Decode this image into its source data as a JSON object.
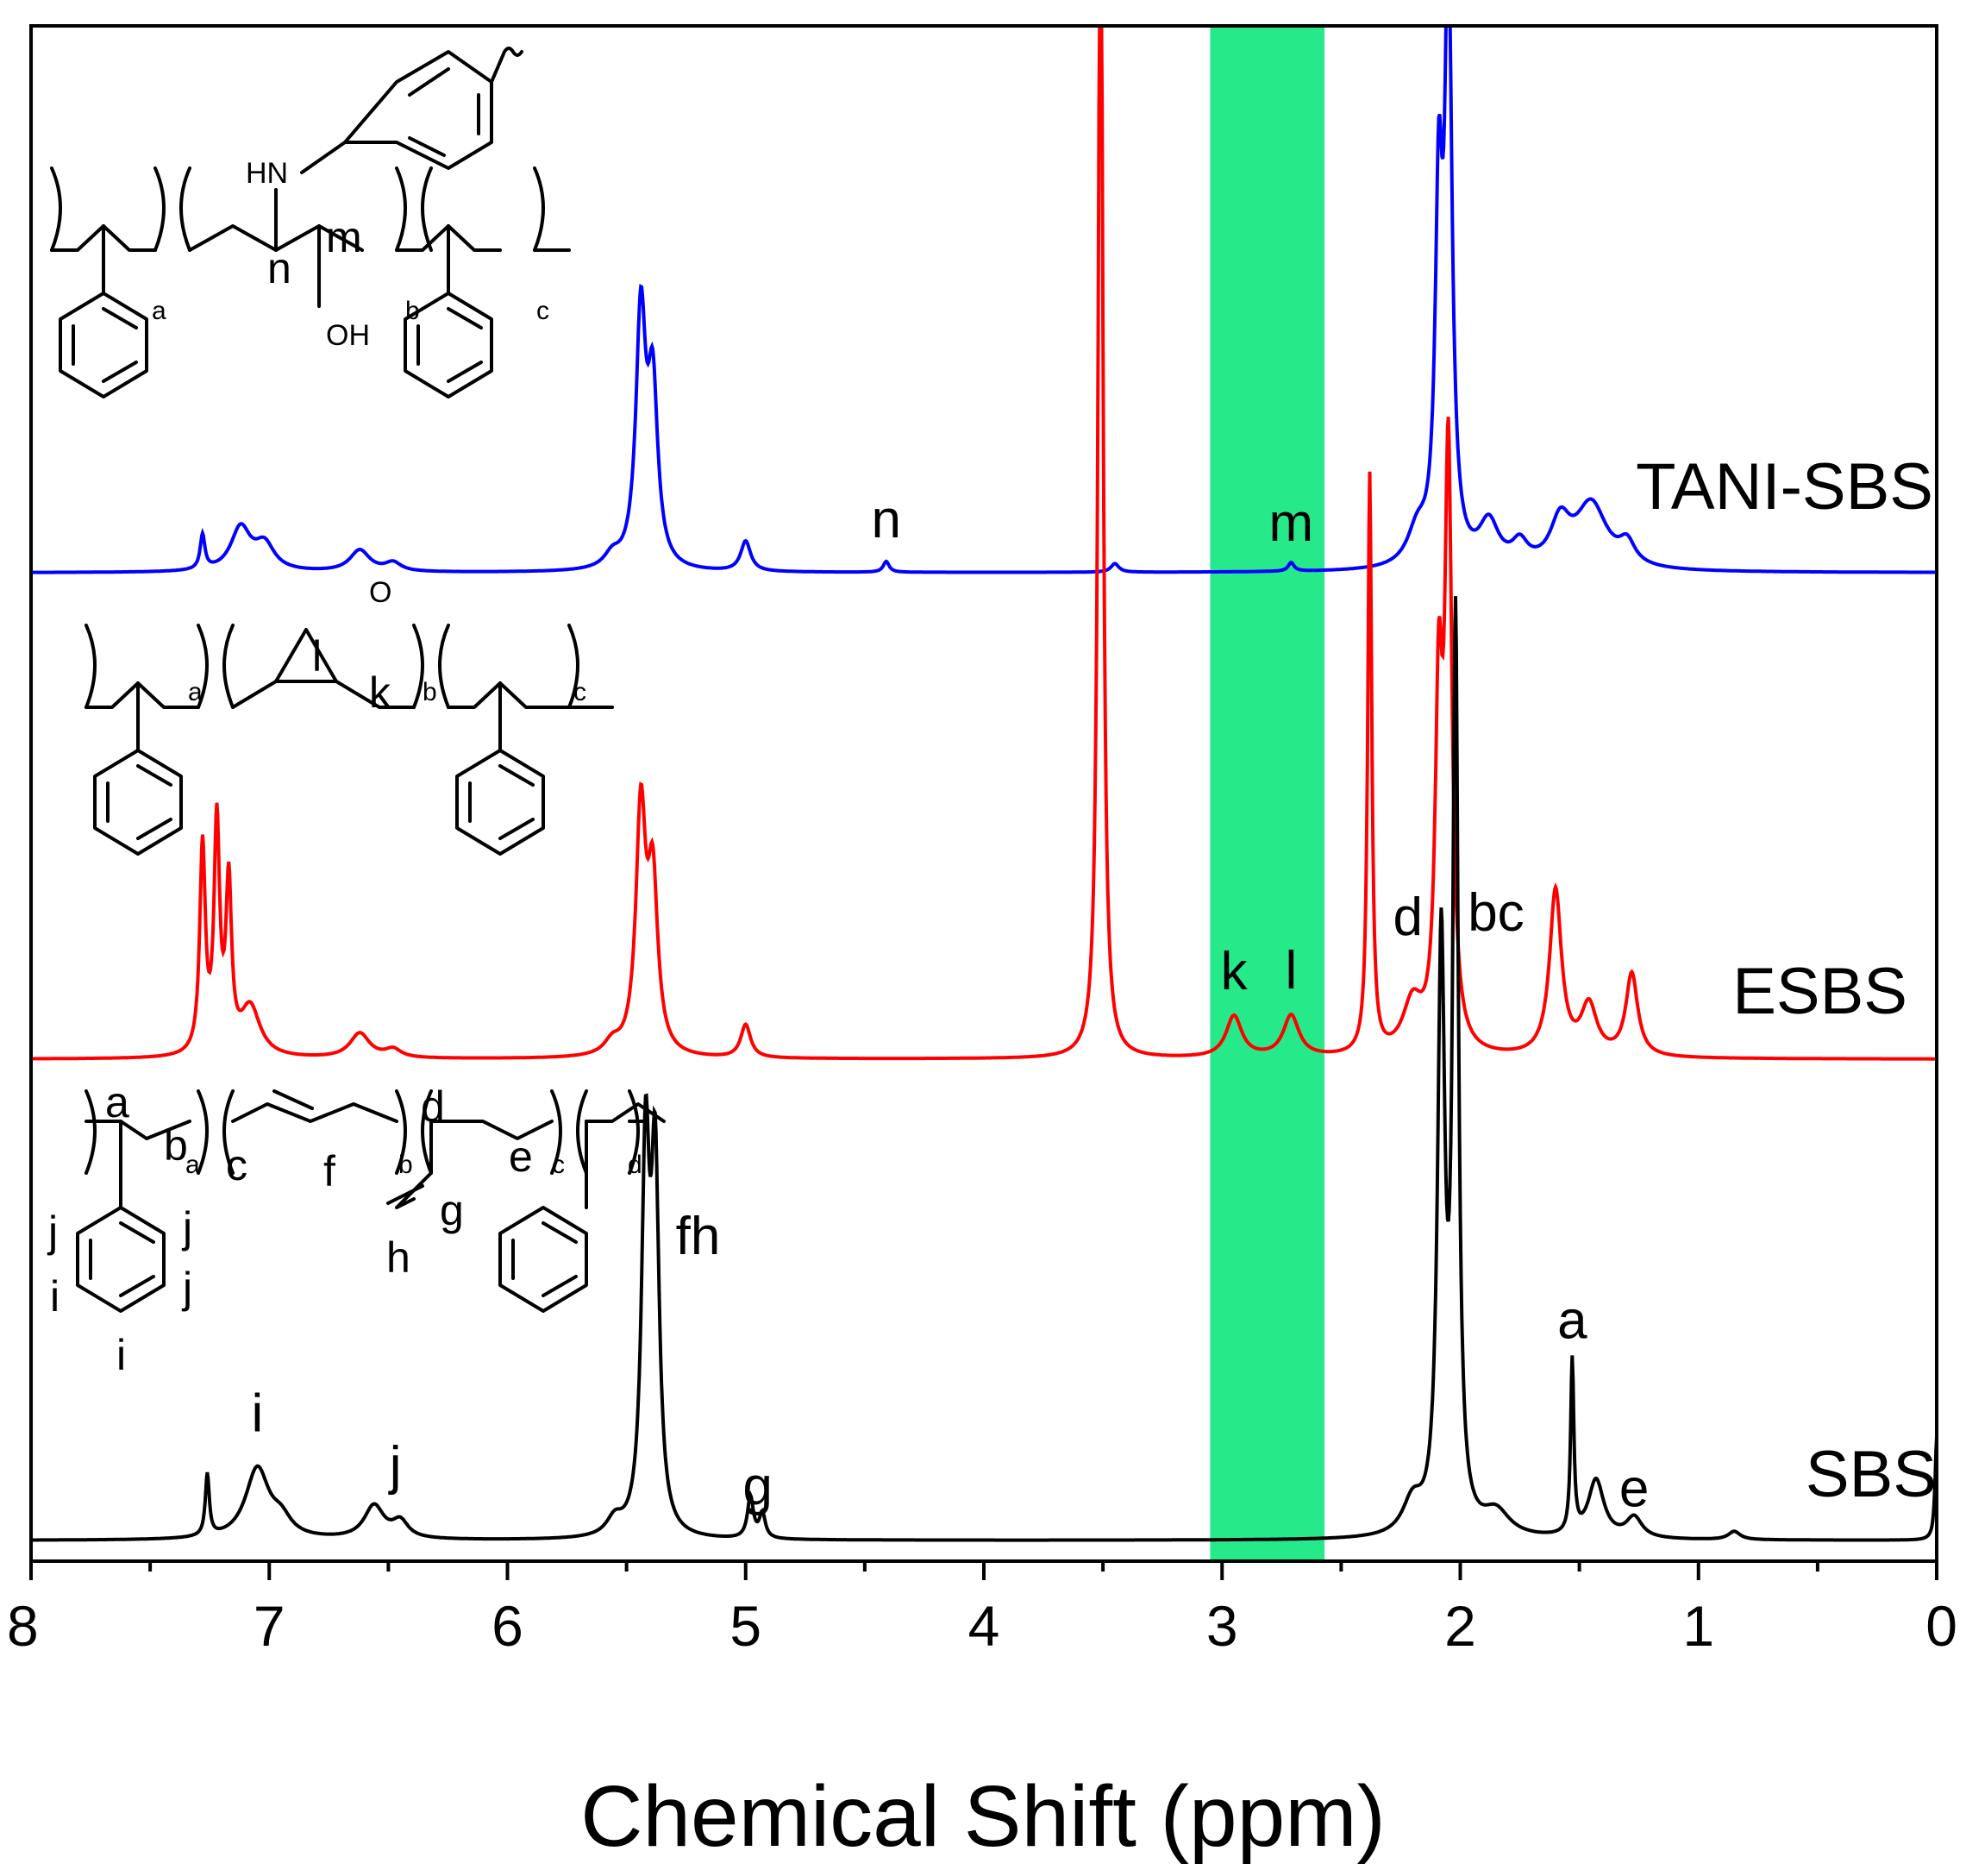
{
  "chart_data": {
    "type": "line",
    "xlabel": "Chemical Shift (ppm)",
    "xlim": [
      8,
      0
    ],
    "x_reversed": true,
    "x_ticks": [
      "8",
      "7",
      "6",
      "5",
      "4",
      "3",
      "2",
      "1",
      "0"
    ],
    "y_axis": "none",
    "highlight_band": {
      "from": 3.05,
      "to": 2.57,
      "color": "#00e676"
    },
    "series": [
      {
        "name": "TANI-SBS",
        "color": "#0000ff",
        "peaks": [
          {
            "x": 7.28,
            "h": 0.08,
            "w": 0.012
          },
          {
            "x": 7.12,
            "h": 0.1,
            "w": 0.05
          },
          {
            "x": 7.02,
            "h": 0.06,
            "w": 0.05
          },
          {
            "x": 6.62,
            "h": 0.05,
            "w": 0.05
          },
          {
            "x": 6.48,
            "h": 0.02,
            "w": 0.04
          },
          {
            "x": 5.56,
            "h": 0.03,
            "w": 0.04
          },
          {
            "x": 5.44,
            "h": 0.58,
            "w": 0.025
          },
          {
            "x": 5.39,
            "h": 0.4,
            "w": 0.025
          },
          {
            "x": 5.0,
            "h": 0.07,
            "w": 0.025
          },
          {
            "x": 4.41,
            "h": 0.025,
            "w": 0.015
          },
          {
            "x": 3.45,
            "h": 0.02,
            "w": 0.02
          },
          {
            "x": 2.71,
            "h": 0.02,
            "w": 0.015
          },
          {
            "x": 2.18,
            "h": 0.08,
            "w": 0.05
          },
          {
            "x": 2.09,
            "h": 0.8,
            "w": 0.018
          },
          {
            "x": 2.05,
            "h": 1.35,
            "w": 0.018
          },
          {
            "x": 1.88,
            "h": 0.1,
            "w": 0.05
          },
          {
            "x": 1.75,
            "h": 0.05,
            "w": 0.04
          },
          {
            "x": 1.58,
            "h": 0.1,
            "w": 0.05
          },
          {
            "x": 1.45,
            "h": 0.15,
            "w": 0.08
          },
          {
            "x": 1.3,
            "h": 0.05,
            "w": 0.04
          }
        ]
      },
      {
        "name": "ESBS",
        "color": "#ff0000",
        "peaks": [
          {
            "x": 7.28,
            "h": 0.5,
            "w": 0.014
          },
          {
            "x": 7.22,
            "h": 0.55,
            "w": 0.014
          },
          {
            "x": 7.17,
            "h": 0.4,
            "w": 0.014
          },
          {
            "x": 7.08,
            "h": 0.12,
            "w": 0.05
          },
          {
            "x": 6.62,
            "h": 0.06,
            "w": 0.05
          },
          {
            "x": 6.48,
            "h": 0.02,
            "w": 0.04
          },
          {
            "x": 5.56,
            "h": 0.03,
            "w": 0.04
          },
          {
            "x": 5.44,
            "h": 0.58,
            "w": 0.025
          },
          {
            "x": 5.39,
            "h": 0.4,
            "w": 0.025
          },
          {
            "x": 5.0,
            "h": 0.08,
            "w": 0.025
          },
          {
            "x": 3.51,
            "h": 3.0,
            "w": 0.012
          },
          {
            "x": 2.95,
            "h": 0.1,
            "w": 0.04
          },
          {
            "x": 2.71,
            "h": 0.1,
            "w": 0.04
          },
          {
            "x": 2.38,
            "h": 1.4,
            "w": 0.01
          },
          {
            "x": 2.2,
            "h": 0.12,
            "w": 0.05
          },
          {
            "x": 2.09,
            "h": 0.8,
            "w": 0.018
          },
          {
            "x": 2.05,
            "h": 1.4,
            "w": 0.018
          },
          {
            "x": 1.6,
            "h": 0.4,
            "w": 0.03
          },
          {
            "x": 1.46,
            "h": 0.12,
            "w": 0.04
          },
          {
            "x": 1.28,
            "h": 0.2,
            "w": 0.03
          }
        ]
      },
      {
        "name": "SBS",
        "color": "#000000",
        "peaks": [
          {
            "x": 7.26,
            "h": 0.15,
            "w": 0.01
          },
          {
            "x": 7.05,
            "h": 0.17,
            "w": 0.06
          },
          {
            "x": 6.95,
            "h": 0.04,
            "w": 0.05
          },
          {
            "x": 6.56,
            "h": 0.08,
            "w": 0.05
          },
          {
            "x": 6.45,
            "h": 0.04,
            "w": 0.04
          },
          {
            "x": 5.55,
            "h": 0.04,
            "w": 0.04
          },
          {
            "x": 5.42,
            "h": 0.9,
            "w": 0.02
          },
          {
            "x": 5.38,
            "h": 0.85,
            "w": 0.02
          },
          {
            "x": 4.98,
            "h": 0.1,
            "w": 0.015
          },
          {
            "x": 4.93,
            "h": 0.06,
            "w": 0.015
          },
          {
            "x": 2.2,
            "h": 0.08,
            "w": 0.05
          },
          {
            "x": 2.08,
            "h": 1.4,
            "w": 0.018
          },
          {
            "x": 2.02,
            "h": 2.15,
            "w": 0.014
          },
          {
            "x": 1.85,
            "h": 0.06,
            "w": 0.07
          },
          {
            "x": 1.53,
            "h": 0.42,
            "w": 0.008
          },
          {
            "x": 1.43,
            "h": 0.14,
            "w": 0.04
          },
          {
            "x": 1.27,
            "h": 0.05,
            "w": 0.04
          },
          {
            "x": 0.85,
            "h": 0.02,
            "w": 0.03
          },
          {
            "x": 0.0,
            "h": 0.25,
            "w": 0.008
          }
        ]
      }
    ],
    "peak_labels": [
      {
        "series": "TANI-SBS",
        "text": "n",
        "x": 4.41
      },
      {
        "series": "TANI-SBS",
        "text": "m",
        "x": 2.71
      },
      {
        "series": "ESBS",
        "text": "k",
        "x": 2.95
      },
      {
        "series": "ESBS",
        "text": "l",
        "x": 2.71
      },
      {
        "series": "SBS",
        "text": "i",
        "x": 7.05
      },
      {
        "series": "SBS",
        "text": "j",
        "x": 6.47
      },
      {
        "series": "SBS",
        "text": "fh",
        "x": 5.2
      },
      {
        "series": "SBS",
        "text": "g",
        "x": 4.95
      },
      {
        "series": "SBS",
        "text": "d",
        "x": 2.22
      },
      {
        "series": "SBS",
        "text": "bc",
        "x": 1.85
      },
      {
        "series": "SBS",
        "text": "a",
        "x": 1.53
      },
      {
        "series": "SBS",
        "text": "e",
        "x": 1.27
      }
    ]
  },
  "structures": {
    "tani": {
      "nh": "HN",
      "oh": "OH",
      "n": "n",
      "m": "m",
      "a": "a",
      "b": "b",
      "c": "c"
    },
    "esbs": {
      "o": "O",
      "l": "l",
      "k": "k",
      "a": "a",
      "b": "b",
      "c": "c"
    },
    "sbs": {
      "a": "a",
      "b": "b",
      "c": "c",
      "d": "d",
      "e": "e",
      "f": "f",
      "g": "g",
      "h": "h",
      "i": "i",
      "j": "j",
      "sub_a": "a",
      "sub_b": "b",
      "sub_c": "c",
      "sub_d": "d"
    }
  }
}
